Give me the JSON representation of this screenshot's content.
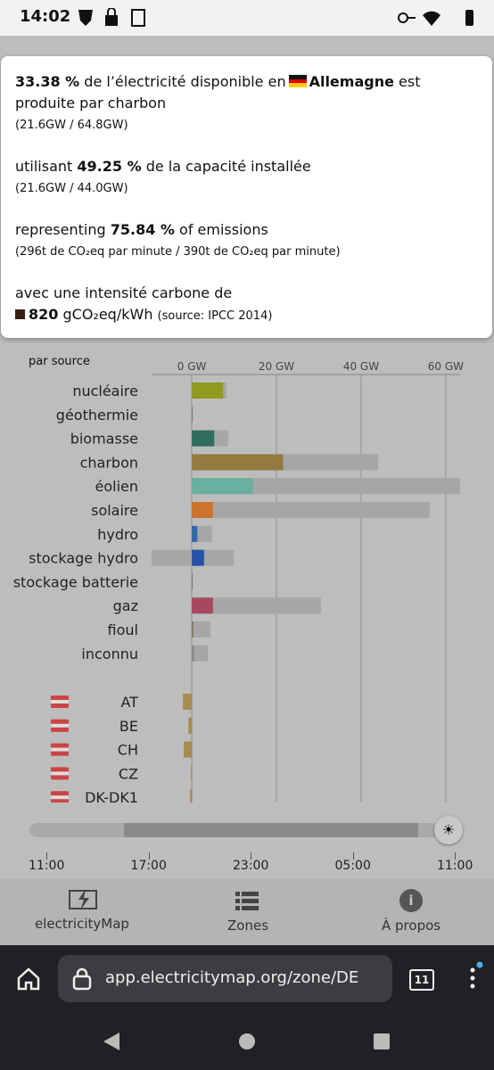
{
  "status_bar": {
    "time": "14:02"
  },
  "tooltip": {
    "share": {
      "value": "33.38 %",
      "text_before": " de l’électricité disponible en",
      "zone": "Allemagne",
      "text_after": " est produite par charbon",
      "detail": "(21.6GW / 64.8GW)"
    },
    "capacity": {
      "text_before": "utilisant ",
      "value": "49.25 %",
      "text_after": " de la capacité installée",
      "detail": "(21.6GW / 44.0GW)"
    },
    "emissions": {
      "text_before": "representing ",
      "value": "75.84 %",
      "text_after": " of emissions",
      "detail": "(296t de CO₂eq par minute / 390t de CO₂eq par minute)"
    },
    "intensity": {
      "text": "avec une intensité carbone de",
      "value": "820",
      "unit": "gCO₂eq/kWh",
      "source": "(source: IPCC 2014)"
    }
  },
  "chart_data": {
    "type": "bar",
    "title": "par source",
    "categories": [
      "nucléaire",
      "géothermie",
      "biomasse",
      "charbon",
      "éolien",
      "solaire",
      "hydro",
      "stockage hydro",
      "stockage batterie",
      "gaz",
      "fioul",
      "inconnu"
    ],
    "values": [
      7.4,
      0,
      5.3,
      21.6,
      14.5,
      5.0,
      1.3,
      2.9,
      0,
      5.0,
      0.3,
      0.6
    ],
    "colors": [
      "#8f9a1f",
      "#8a6b8a",
      "#2f6e5e",
      "#957a40",
      "#6aafa0",
      "#cc7330",
      "#2f68aa",
      "#2552a8",
      "#777777",
      "#a8485f",
      "#7d6a4f",
      "#8c8c8c"
    ],
    "capacity": [
      8.2,
      0,
      8.6,
      44.0,
      63.4,
      56.2,
      4.8,
      9.9,
      0.2,
      30.5,
      4.4,
      3.8
    ],
    "capacity_min": [
      0,
      0,
      0,
      0,
      0,
      0,
      0,
      -9.5,
      0,
      0,
      0,
      0
    ],
    "xlim": [
      -9.5,
      63.4
    ],
    "xticks": [
      {
        "value": 0,
        "label": "0 GW"
      },
      {
        "value": 20,
        "label": "20 GW"
      },
      {
        "value": 40,
        "label": "40 GW"
      },
      {
        "value": 60,
        "label": "60 GW"
      }
    ],
    "exchanges": {
      "categories": [
        "AT",
        "BE",
        "CH",
        "CZ",
        "DK-DK1"
      ],
      "values": [
        -2.1,
        -0.8,
        -1.9,
        -0.2,
        -0.4
      ],
      "color": "#a88b4f"
    }
  },
  "timeline": {
    "ticks": [
      "11:00",
      "17:00",
      "23:00",
      "05:00",
      "11:00"
    ]
  },
  "nav": [
    "electricityMap",
    "Zones",
    "À propos"
  ],
  "browser": {
    "url": "app.electricitymap.org/zone/DE",
    "tabs": "11"
  }
}
